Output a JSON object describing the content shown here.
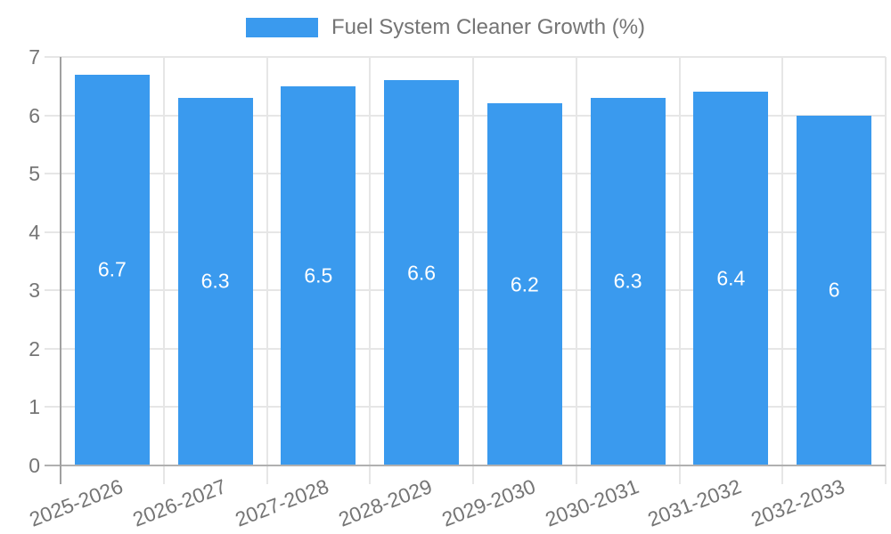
{
  "chart_data": {
    "type": "bar",
    "title": "Fuel System Cleaner Growth (%)",
    "legend": "Fuel System Cleaner Growth (%)",
    "legend_position": "top-center",
    "categories": [
      "2025-2026",
      "2026-2027",
      "2027-2028",
      "2028-2029",
      "2029-2030",
      "2030-2031",
      "2031-2032",
      "2032-2033"
    ],
    "values": [
      6.7,
      6.3,
      6.5,
      6.6,
      6.2,
      6.3,
      6.4,
      6
    ],
    "value_labels": [
      "6.7",
      "6.3",
      "6.5",
      "6.6",
      "6.2",
      "6.3",
      "6.4",
      "6"
    ],
    "xlabel": "",
    "ylabel": "",
    "ylim": [
      0,
      7
    ],
    "yticks": [
      0,
      1,
      2,
      3,
      4,
      5,
      6,
      7
    ],
    "grid": "on",
    "x_label_rotation_deg": -21,
    "colors": {
      "bar": "#3A9AEE",
      "bar_value_text": "#ffffff",
      "axis_text": "#757575",
      "legend_text": "#757575",
      "gridline": "#e6e6e6",
      "axis_line": "#a0a0a0",
      "zero_line": "#b0b0b0",
      "background": "#ffffff"
    }
  }
}
